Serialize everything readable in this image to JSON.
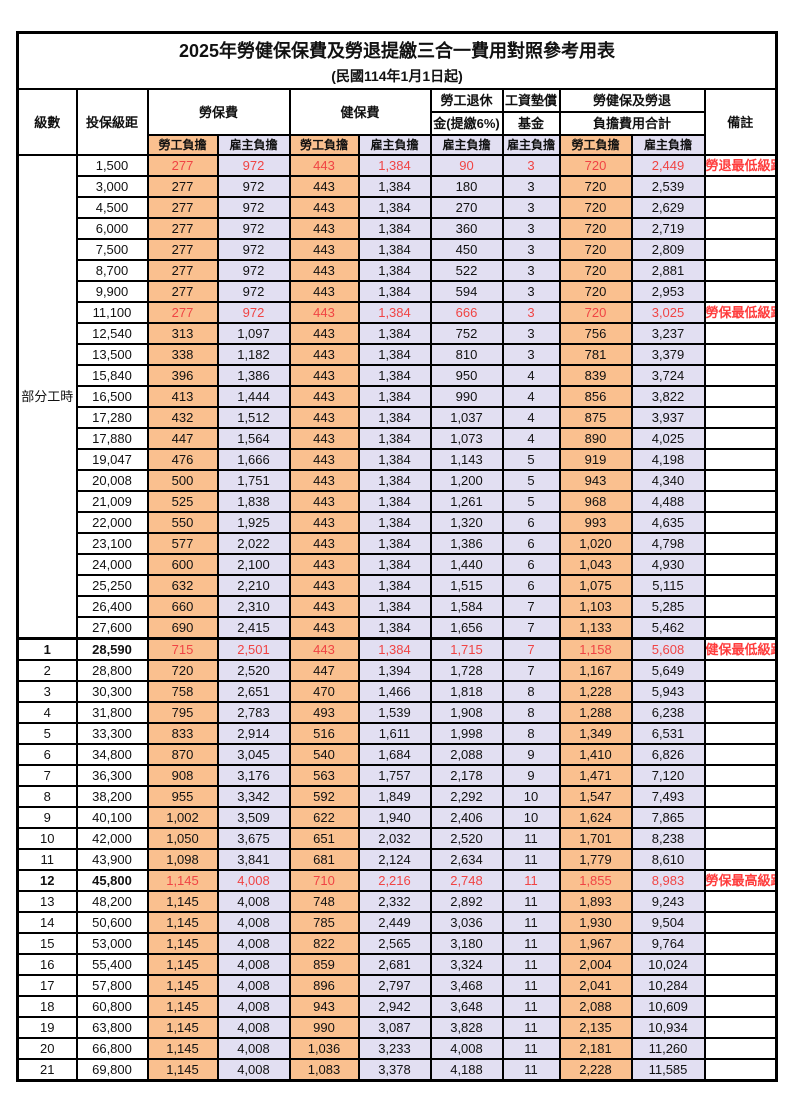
{
  "title": {
    "main": "2025年勞健保保費及勞退提繳三合一費用對照參考用表",
    "sub": "(民國114年1月1日起)"
  },
  "header": {
    "level": "級數",
    "bracket": "投保級距",
    "labor_fee": "勞保費",
    "health_fee": "健保費",
    "pension_line1": "勞工退休",
    "pension_line2": "金(提繳6%)",
    "fund_line1": "工資墊償",
    "fund_line2": "基金",
    "total_line1": "勞健保及勞退",
    "total_line2": "負擔費用合計",
    "remark": "備註",
    "sub_employee": "勞工負擔",
    "sub_employer": "雇主負擔"
  },
  "part_time_label": "部分工時",
  "colors": {
    "employee_bg": "#FAC08F",
    "employer_bg": "#E2DFF2",
    "highlight_red": "#F04444",
    "remark_red": "#FF3D3D",
    "border": "#000000"
  },
  "rows": [
    {
      "level": "",
      "bracket": "1,500",
      "values": [
        "277",
        "972",
        "443",
        "1,384",
        "90",
        "3",
        "720",
        "2,449"
      ],
      "remark": "勞退最低級距",
      "red": true,
      "bold": false
    },
    {
      "level": "",
      "bracket": "3,000",
      "values": [
        "277",
        "972",
        "443",
        "1,384",
        "180",
        "3",
        "720",
        "2,539"
      ],
      "remark": "",
      "red": false,
      "bold": false
    },
    {
      "level": "",
      "bracket": "4,500",
      "values": [
        "277",
        "972",
        "443",
        "1,384",
        "270",
        "3",
        "720",
        "2,629"
      ],
      "remark": "",
      "red": false,
      "bold": false
    },
    {
      "level": "",
      "bracket": "6,000",
      "values": [
        "277",
        "972",
        "443",
        "1,384",
        "360",
        "3",
        "720",
        "2,719"
      ],
      "remark": "",
      "red": false,
      "bold": false
    },
    {
      "level": "",
      "bracket": "7,500",
      "values": [
        "277",
        "972",
        "443",
        "1,384",
        "450",
        "3",
        "720",
        "2,809"
      ],
      "remark": "",
      "red": false,
      "bold": false
    },
    {
      "level": "",
      "bracket": "8,700",
      "values": [
        "277",
        "972",
        "443",
        "1,384",
        "522",
        "3",
        "720",
        "2,881"
      ],
      "remark": "",
      "red": false,
      "bold": false
    },
    {
      "level": "",
      "bracket": "9,900",
      "values": [
        "277",
        "972",
        "443",
        "1,384",
        "594",
        "3",
        "720",
        "2,953"
      ],
      "remark": "",
      "red": false,
      "bold": false
    },
    {
      "level": "",
      "bracket": "11,100",
      "values": [
        "277",
        "972",
        "443",
        "1,384",
        "666",
        "3",
        "720",
        "3,025"
      ],
      "remark": "勞保最低級距",
      "red": true,
      "bold": false
    },
    {
      "level": "",
      "bracket": "12,540",
      "values": [
        "313",
        "1,097",
        "443",
        "1,384",
        "752",
        "3",
        "756",
        "3,237"
      ],
      "remark": "",
      "red": false,
      "bold": false
    },
    {
      "level": "",
      "bracket": "13,500",
      "values": [
        "338",
        "1,182",
        "443",
        "1,384",
        "810",
        "3",
        "781",
        "3,379"
      ],
      "remark": "",
      "red": false,
      "bold": false
    },
    {
      "level": "",
      "bracket": "15,840",
      "values": [
        "396",
        "1,386",
        "443",
        "1,384",
        "950",
        "4",
        "839",
        "3,724"
      ],
      "remark": "",
      "red": false,
      "bold": false
    },
    {
      "level": "",
      "bracket": "16,500",
      "values": [
        "413",
        "1,444",
        "443",
        "1,384",
        "990",
        "4",
        "856",
        "3,822"
      ],
      "remark": "",
      "red": false,
      "bold": false
    },
    {
      "level": "",
      "bracket": "17,280",
      "values": [
        "432",
        "1,512",
        "443",
        "1,384",
        "1,037",
        "4",
        "875",
        "3,937"
      ],
      "remark": "",
      "red": false,
      "bold": false
    },
    {
      "level": "",
      "bracket": "17,880",
      "values": [
        "447",
        "1,564",
        "443",
        "1,384",
        "1,073",
        "4",
        "890",
        "4,025"
      ],
      "remark": "",
      "red": false,
      "bold": false
    },
    {
      "level": "",
      "bracket": "19,047",
      "values": [
        "476",
        "1,666",
        "443",
        "1,384",
        "1,143",
        "5",
        "919",
        "4,198"
      ],
      "remark": "",
      "red": false,
      "bold": false
    },
    {
      "level": "",
      "bracket": "20,008",
      "values": [
        "500",
        "1,751",
        "443",
        "1,384",
        "1,200",
        "5",
        "943",
        "4,340"
      ],
      "remark": "",
      "red": false,
      "bold": false
    },
    {
      "level": "",
      "bracket": "21,009",
      "values": [
        "525",
        "1,838",
        "443",
        "1,384",
        "1,261",
        "5",
        "968",
        "4,488"
      ],
      "remark": "",
      "red": false,
      "bold": false
    },
    {
      "level": "",
      "bracket": "22,000",
      "values": [
        "550",
        "1,925",
        "443",
        "1,384",
        "1,320",
        "6",
        "993",
        "4,635"
      ],
      "remark": "",
      "red": false,
      "bold": false
    },
    {
      "level": "",
      "bracket": "23,100",
      "values": [
        "577",
        "2,022",
        "443",
        "1,384",
        "1,386",
        "6",
        "1,020",
        "4,798"
      ],
      "remark": "",
      "red": false,
      "bold": false
    },
    {
      "level": "",
      "bracket": "24,000",
      "values": [
        "600",
        "2,100",
        "443",
        "1,384",
        "1,440",
        "6",
        "1,043",
        "4,930"
      ],
      "remark": "",
      "red": false,
      "bold": false
    },
    {
      "level": "",
      "bracket": "25,250",
      "values": [
        "632",
        "2,210",
        "443",
        "1,384",
        "1,515",
        "6",
        "1,075",
        "5,115"
      ],
      "remark": "",
      "red": false,
      "bold": false
    },
    {
      "level": "",
      "bracket": "26,400",
      "values": [
        "660",
        "2,310",
        "443",
        "1,384",
        "1,584",
        "7",
        "1,103",
        "5,285"
      ],
      "remark": "",
      "red": false,
      "bold": false
    },
    {
      "level": "",
      "bracket": "27,600",
      "values": [
        "690",
        "2,415",
        "443",
        "1,384",
        "1,656",
        "7",
        "1,133",
        "5,462"
      ],
      "remark": "",
      "red": false,
      "bold": false
    },
    {
      "level": "1",
      "bracket": "28,590",
      "values": [
        "715",
        "2,501",
        "443",
        "1,384",
        "1,715",
        "7",
        "1,158",
        "5,608"
      ],
      "remark": "健保最低級距",
      "red": true,
      "bold": true,
      "section_break": true
    },
    {
      "level": "2",
      "bracket": "28,800",
      "values": [
        "720",
        "2,520",
        "447",
        "1,394",
        "1,728",
        "7",
        "1,167",
        "5,649"
      ],
      "remark": "",
      "red": false,
      "bold": false
    },
    {
      "level": "3",
      "bracket": "30,300",
      "values": [
        "758",
        "2,651",
        "470",
        "1,466",
        "1,818",
        "8",
        "1,228",
        "5,943"
      ],
      "remark": "",
      "red": false,
      "bold": false
    },
    {
      "level": "4",
      "bracket": "31,800",
      "values": [
        "795",
        "2,783",
        "493",
        "1,539",
        "1,908",
        "8",
        "1,288",
        "6,238"
      ],
      "remark": "",
      "red": false,
      "bold": false
    },
    {
      "level": "5",
      "bracket": "33,300",
      "values": [
        "833",
        "2,914",
        "516",
        "1,611",
        "1,998",
        "8",
        "1,349",
        "6,531"
      ],
      "remark": "",
      "red": false,
      "bold": false
    },
    {
      "level": "6",
      "bracket": "34,800",
      "values": [
        "870",
        "3,045",
        "540",
        "1,684",
        "2,088",
        "9",
        "1,410",
        "6,826"
      ],
      "remark": "",
      "red": false,
      "bold": false
    },
    {
      "level": "7",
      "bracket": "36,300",
      "values": [
        "908",
        "3,176",
        "563",
        "1,757",
        "2,178",
        "9",
        "1,471",
        "7,120"
      ],
      "remark": "",
      "red": false,
      "bold": false
    },
    {
      "level": "8",
      "bracket": "38,200",
      "values": [
        "955",
        "3,342",
        "592",
        "1,849",
        "2,292",
        "10",
        "1,547",
        "7,493"
      ],
      "remark": "",
      "red": false,
      "bold": false
    },
    {
      "level": "9",
      "bracket": "40,100",
      "values": [
        "1,002",
        "3,509",
        "622",
        "1,940",
        "2,406",
        "10",
        "1,624",
        "7,865"
      ],
      "remark": "",
      "red": false,
      "bold": false
    },
    {
      "level": "10",
      "bracket": "42,000",
      "values": [
        "1,050",
        "3,675",
        "651",
        "2,032",
        "2,520",
        "11",
        "1,701",
        "8,238"
      ],
      "remark": "",
      "red": false,
      "bold": false
    },
    {
      "level": "11",
      "bracket": "43,900",
      "values": [
        "1,098",
        "3,841",
        "681",
        "2,124",
        "2,634",
        "11",
        "1,779",
        "8,610"
      ],
      "remark": "",
      "red": false,
      "bold": false
    },
    {
      "level": "12",
      "bracket": "45,800",
      "values": [
        "1,145",
        "4,008",
        "710",
        "2,216",
        "2,748",
        "11",
        "1,855",
        "8,983"
      ],
      "remark": "勞保最高級距",
      "red": true,
      "bold": true
    },
    {
      "level": "13",
      "bracket": "48,200",
      "values": [
        "1,145",
        "4,008",
        "748",
        "2,332",
        "2,892",
        "11",
        "1,893",
        "9,243"
      ],
      "remark": "",
      "red": false,
      "bold": false
    },
    {
      "level": "14",
      "bracket": "50,600",
      "values": [
        "1,145",
        "4,008",
        "785",
        "2,449",
        "3,036",
        "11",
        "1,930",
        "9,504"
      ],
      "remark": "",
      "red": false,
      "bold": false
    },
    {
      "level": "15",
      "bracket": "53,000",
      "values": [
        "1,145",
        "4,008",
        "822",
        "2,565",
        "3,180",
        "11",
        "1,967",
        "9,764"
      ],
      "remark": "",
      "red": false,
      "bold": false
    },
    {
      "level": "16",
      "bracket": "55,400",
      "values": [
        "1,145",
        "4,008",
        "859",
        "2,681",
        "3,324",
        "11",
        "2,004",
        "10,024"
      ],
      "remark": "",
      "red": false,
      "bold": false
    },
    {
      "level": "17",
      "bracket": "57,800",
      "values": [
        "1,145",
        "4,008",
        "896",
        "2,797",
        "3,468",
        "11",
        "2,041",
        "10,284"
      ],
      "remark": "",
      "red": false,
      "bold": false
    },
    {
      "level": "18",
      "bracket": "60,800",
      "values": [
        "1,145",
        "4,008",
        "943",
        "2,942",
        "3,648",
        "11",
        "2,088",
        "10,609"
      ],
      "remark": "",
      "red": false,
      "bold": false
    },
    {
      "level": "19",
      "bracket": "63,800",
      "values": [
        "1,145",
        "4,008",
        "990",
        "3,087",
        "3,828",
        "11",
        "2,135",
        "10,934"
      ],
      "remark": "",
      "red": false,
      "bold": false
    },
    {
      "level": "20",
      "bracket": "66,800",
      "values": [
        "1,145",
        "4,008",
        "1,036",
        "3,233",
        "4,008",
        "11",
        "2,181",
        "11,260"
      ],
      "remark": "",
      "red": false,
      "bold": false
    },
    {
      "level": "21",
      "bracket": "69,800",
      "values": [
        "1,145",
        "4,008",
        "1,083",
        "3,378",
        "4,188",
        "11",
        "2,228",
        "11,585"
      ],
      "remark": "",
      "red": false,
      "bold": false
    }
  ]
}
